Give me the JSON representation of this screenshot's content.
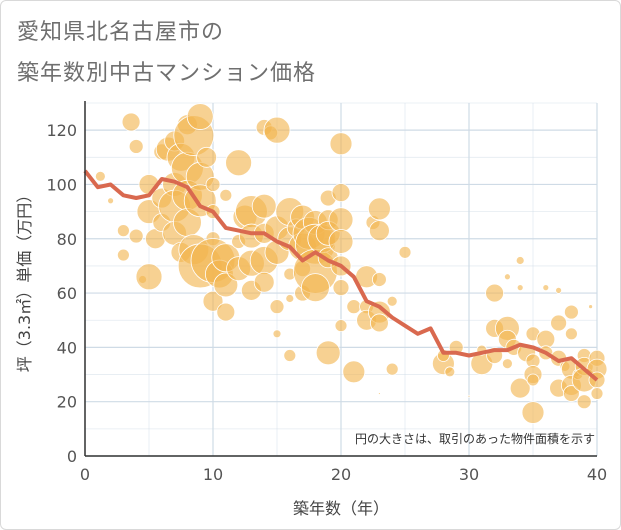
{
  "header": {
    "title_line1": "愛知県北名古屋市の",
    "title_line2": "築年数別中古マンション価格"
  },
  "chart_data": {
    "type": "scatter",
    "xlabel": "築年数（年）",
    "ylabel": "坪（3.3㎡）単価（万円）",
    "note": "円の大きさは、取引のあった物件面積を示す",
    "xlim": [
      0,
      40
    ],
    "ylim": [
      0,
      130
    ],
    "xticks": [
      0,
      10,
      20,
      30,
      40
    ],
    "yticks": [
      0,
      20,
      40,
      60,
      80,
      100,
      120
    ],
    "grid": true,
    "colors": {
      "bubble": "#f2b44f",
      "line": "#d9694f",
      "grid": "#cfdbe6"
    },
    "line_series": {
      "x": [
        0,
        1,
        2,
        3,
        4,
        5,
        6,
        7,
        8,
        9,
        10,
        11,
        12,
        13,
        14,
        15,
        16,
        17,
        18,
        19,
        20,
        21,
        22,
        23,
        24,
        25,
        26,
        27,
        28,
        29,
        30,
        31,
        32,
        33,
        34,
        35,
        36,
        37,
        38,
        39,
        40
      ],
      "y": [
        105,
        99,
        100,
        96,
        95,
        96,
        102,
        101,
        99,
        92,
        90,
        84,
        83,
        82,
        82,
        79,
        77,
        72,
        75,
        72,
        70,
        66,
        57,
        55,
        51,
        48,
        45,
        47,
        38,
        38,
        37,
        38,
        39,
        39,
        41,
        40,
        38,
        35,
        36,
        32,
        28
      ]
    },
    "bubbles": [
      {
        "x": 1.2,
        "y": 103,
        "r": 5
      },
      {
        "x": 2,
        "y": 94,
        "r": 3
      },
      {
        "x": 3,
        "y": 83,
        "r": 6
      },
      {
        "x": 3,
        "y": 74,
        "r": 6
      },
      {
        "x": 3.6,
        "y": 123,
        "r": 9
      },
      {
        "x": 4,
        "y": 114,
        "r": 7
      },
      {
        "x": 4,
        "y": 81,
        "r": 7
      },
      {
        "x": 4.5,
        "y": 65,
        "r": 4
      },
      {
        "x": 5,
        "y": 100,
        "r": 10
      },
      {
        "x": 5,
        "y": 90,
        "r": 12
      },
      {
        "x": 5,
        "y": 66,
        "r": 13
      },
      {
        "x": 5.5,
        "y": 80,
        "r": 10
      },
      {
        "x": 6,
        "y": 95,
        "r": 10
      },
      {
        "x": 6,
        "y": 86,
        "r": 9
      },
      {
        "x": 6,
        "y": 112,
        "r": 8
      },
      {
        "x": 6.5,
        "y": 113,
        "r": 12
      },
      {
        "x": 7,
        "y": 116,
        "r": 10
      },
      {
        "x": 7,
        "y": 100,
        "r": 12
      },
      {
        "x": 7,
        "y": 92,
        "r": 16
      },
      {
        "x": 7,
        "y": 82,
        "r": 12
      },
      {
        "x": 7.5,
        "y": 110,
        "r": 14
      },
      {
        "x": 7.5,
        "y": 75,
        "r": 10
      },
      {
        "x": 8,
        "y": 122,
        "r": 10
      },
      {
        "x": 8,
        "y": 106,
        "r": 16
      },
      {
        "x": 8,
        "y": 96,
        "r": 15
      },
      {
        "x": 8,
        "y": 86,
        "r": 14
      },
      {
        "x": 8.5,
        "y": 118,
        "r": 20
      },
      {
        "x": 8.5,
        "y": 76,
        "r": 15
      },
      {
        "x": 9,
        "y": 125,
        "r": 13
      },
      {
        "x": 9,
        "y": 103,
        "r": 14
      },
      {
        "x": 9,
        "y": 94,
        "r": 16
      },
      {
        "x": 9,
        "y": 70,
        "r": 22
      },
      {
        "x": 9.5,
        "y": 110,
        "r": 10
      },
      {
        "x": 10,
        "y": 100,
        "r": 7
      },
      {
        "x": 10,
        "y": 90,
        "r": 7
      },
      {
        "x": 10,
        "y": 80,
        "r": 7
      },
      {
        "x": 10,
        "y": 72,
        "r": 22
      },
      {
        "x": 10,
        "y": 57,
        "r": 10
      },
      {
        "x": 10.5,
        "y": 67,
        "r": 14
      },
      {
        "x": 11,
        "y": 96,
        "r": 6
      },
      {
        "x": 11,
        "y": 73,
        "r": 14
      },
      {
        "x": 11,
        "y": 63,
        "r": 12
      },
      {
        "x": 11,
        "y": 53,
        "r": 9
      },
      {
        "x": 12,
        "y": 108,
        "r": 13
      },
      {
        "x": 12,
        "y": 79,
        "r": 7
      },
      {
        "x": 12,
        "y": 69,
        "r": 12
      },
      {
        "x": 12.5,
        "y": 88,
        "r": 12
      },
      {
        "x": 13,
        "y": 90,
        "r": 16
      },
      {
        "x": 13,
        "y": 81,
        "r": 12
      },
      {
        "x": 13,
        "y": 71,
        "r": 13
      },
      {
        "x": 13,
        "y": 61,
        "r": 10
      },
      {
        "x": 14,
        "y": 121,
        "r": 8
      },
      {
        "x": 14,
        "y": 92,
        "r": 12
      },
      {
        "x": 14,
        "y": 82,
        "r": 10
      },
      {
        "x": 14,
        "y": 72,
        "r": 14
      },
      {
        "x": 14,
        "y": 64,
        "r": 10
      },
      {
        "x": 14.5,
        "y": 119,
        "r": 7
      },
      {
        "x": 15,
        "y": 120,
        "r": 13
      },
      {
        "x": 15,
        "y": 84,
        "r": 12
      },
      {
        "x": 15,
        "y": 75,
        "r": 12
      },
      {
        "x": 15,
        "y": 55,
        "r": 7
      },
      {
        "x": 15,
        "y": 45,
        "r": 4
      },
      {
        "x": 16,
        "y": 90,
        "r": 14
      },
      {
        "x": 16,
        "y": 80,
        "r": 12
      },
      {
        "x": 16,
        "y": 67,
        "r": 6
      },
      {
        "x": 16,
        "y": 58,
        "r": 4
      },
      {
        "x": 16,
        "y": 37,
        "r": 6
      },
      {
        "x": 16.5,
        "y": 84,
        "r": 9
      },
      {
        "x": 17,
        "y": 88,
        "r": 12
      },
      {
        "x": 17,
        "y": 77,
        "r": 14
      },
      {
        "x": 17,
        "y": 69,
        "r": 8
      },
      {
        "x": 17,
        "y": 60,
        "r": 8
      },
      {
        "x": 17.5,
        "y": 82,
        "r": 16
      },
      {
        "x": 18,
        "y": 86,
        "r": 12
      },
      {
        "x": 18,
        "y": 78,
        "r": 20
      },
      {
        "x": 18,
        "y": 68,
        "r": 22
      },
      {
        "x": 18,
        "y": 62,
        "r": 14
      },
      {
        "x": 18.5,
        "y": 80,
        "r": 14
      },
      {
        "x": 19,
        "y": 95,
        "r": 8
      },
      {
        "x": 19,
        "y": 87,
        "r": 10
      },
      {
        "x": 19,
        "y": 82,
        "r": 12
      },
      {
        "x": 19,
        "y": 73,
        "r": 10
      },
      {
        "x": 19,
        "y": 38,
        "r": 12
      },
      {
        "x": 20,
        "y": 115,
        "r": 11
      },
      {
        "x": 20,
        "y": 97,
        "r": 9
      },
      {
        "x": 20,
        "y": 87,
        "r": 12
      },
      {
        "x": 20,
        "y": 79,
        "r": 12
      },
      {
        "x": 20,
        "y": 70,
        "r": 10
      },
      {
        "x": 20,
        "y": 62,
        "r": 8
      },
      {
        "x": 20,
        "y": 48,
        "r": 6
      },
      {
        "x": 21,
        "y": 31,
        "r": 11
      },
      {
        "x": 21,
        "y": 55,
        "r": 7
      },
      {
        "x": 22,
        "y": 66,
        "r": 11
      },
      {
        "x": 22,
        "y": 55,
        "r": 7
      },
      {
        "x": 22,
        "y": 50,
        "r": 10
      },
      {
        "x": 22.5,
        "y": 86,
        "r": 7
      },
      {
        "x": 23,
        "y": 91,
        "r": 11
      },
      {
        "x": 23,
        "y": 83,
        "r": 10
      },
      {
        "x": 23,
        "y": 65,
        "r": 7
      },
      {
        "x": 23,
        "y": 53,
        "r": 11
      },
      {
        "x": 23,
        "y": 49,
        "r": 9
      },
      {
        "x": 23,
        "y": 23,
        "r": 1
      },
      {
        "x": 24,
        "y": 57,
        "r": 5
      },
      {
        "x": 24,
        "y": 32,
        "r": 6
      },
      {
        "x": 25,
        "y": 75,
        "r": 6
      },
      {
        "x": 28,
        "y": 34,
        "r": 11
      },
      {
        "x": 28,
        "y": 37,
        "r": 6
      },
      {
        "x": 28.5,
        "y": 31,
        "r": 5
      },
      {
        "x": 29,
        "y": 40,
        "r": 7
      },
      {
        "x": 30,
        "y": 22,
        "r": 1
      },
      {
        "x": 31,
        "y": 34,
        "r": 11
      },
      {
        "x": 31,
        "y": 39,
        "r": 5
      },
      {
        "x": 32,
        "y": 60,
        "r": 9
      },
      {
        "x": 32,
        "y": 47,
        "r": 9
      },
      {
        "x": 32,
        "y": 37,
        "r": 8
      },
      {
        "x": 33,
        "y": 66,
        "r": 3
      },
      {
        "x": 33,
        "y": 47,
        "r": 12
      },
      {
        "x": 33,
        "y": 43,
        "r": 9
      },
      {
        "x": 33,
        "y": 34,
        "r": 5
      },
      {
        "x": 33.5,
        "y": 40,
        "r": 8
      },
      {
        "x": 34,
        "y": 72,
        "r": 4
      },
      {
        "x": 34,
        "y": 62,
        "r": 3
      },
      {
        "x": 34,
        "y": 25,
        "r": 10
      },
      {
        "x": 34.5,
        "y": 38,
        "r": 9
      },
      {
        "x": 35,
        "y": 45,
        "r": 7
      },
      {
        "x": 35,
        "y": 35,
        "r": 7
      },
      {
        "x": 35,
        "y": 30,
        "r": 9
      },
      {
        "x": 35,
        "y": 28,
        "r": 6
      },
      {
        "x": 35,
        "y": 16,
        "r": 11
      },
      {
        "x": 36,
        "y": 62,
        "r": 3
      },
      {
        "x": 36,
        "y": 43,
        "r": 9
      },
      {
        "x": 36,
        "y": 38,
        "r": 7
      },
      {
        "x": 37,
        "y": 61,
        "r": 3
      },
      {
        "x": 37,
        "y": 49,
        "r": 8
      },
      {
        "x": 37,
        "y": 36,
        "r": 8
      },
      {
        "x": 37,
        "y": 25,
        "r": 9
      },
      {
        "x": 37.5,
        "y": 33,
        "r": 5
      },
      {
        "x": 38,
        "y": 53,
        "r": 7
      },
      {
        "x": 38,
        "y": 45,
        "r": 6
      },
      {
        "x": 38,
        "y": 32,
        "r": 10
      },
      {
        "x": 38,
        "y": 26,
        "r": 10
      },
      {
        "x": 38,
        "y": 23,
        "r": 8
      },
      {
        "x": 38.5,
        "y": 30,
        "r": 5
      },
      {
        "x": 39,
        "y": 37,
        "r": 7
      },
      {
        "x": 39,
        "y": 33,
        "r": 9
      },
      {
        "x": 39,
        "y": 28,
        "r": 12
      },
      {
        "x": 39,
        "y": 20,
        "r": 7
      },
      {
        "x": 40,
        "y": 36,
        "r": 8
      },
      {
        "x": 40,
        "y": 32,
        "r": 10
      },
      {
        "x": 40,
        "y": 28,
        "r": 8
      },
      {
        "x": 40,
        "y": 23,
        "r": 6
      },
      {
        "x": 39.5,
        "y": 55,
        "r": 2
      }
    ]
  }
}
